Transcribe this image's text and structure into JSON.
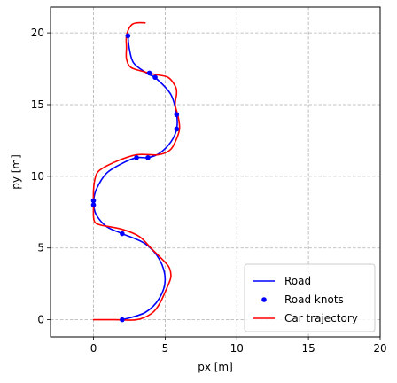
{
  "chart_data": {
    "type": "line",
    "xlabel": "px [m]",
    "ylabel": "py [m]",
    "xlim": [
      -3,
      20
    ],
    "ylim": [
      -1.2,
      21.8
    ],
    "x_ticks": [
      0,
      5,
      10,
      15,
      20
    ],
    "y_ticks": [
      0,
      5,
      10,
      15,
      20
    ],
    "x_tick_labels": [
      "0",
      "5",
      "10",
      "15",
      "20"
    ],
    "y_tick_labels": [
      "0",
      "5",
      "10",
      "15",
      "20"
    ],
    "grid": true,
    "legend_position": "lower right",
    "series": [
      {
        "name": "Road",
        "kind": "line",
        "color": "#0000ff",
        "points": [
          [
            2.0,
            0.0
          ],
          [
            3.6,
            0.5
          ],
          [
            4.6,
            1.5
          ],
          [
            5.0,
            2.8
          ],
          [
            4.6,
            4.2
          ],
          [
            3.6,
            5.3
          ],
          [
            2.0,
            6.0
          ],
          [
            0.9,
            6.5
          ],
          [
            0.2,
            7.3
          ],
          [
            0.0,
            8.0
          ],
          [
            0.0,
            8.3
          ],
          [
            0.2,
            9.1
          ],
          [
            0.9,
            10.2
          ],
          [
            2.0,
            10.9
          ],
          [
            3.0,
            11.3
          ],
          [
            3.8,
            11.3
          ],
          [
            4.6,
            11.6
          ],
          [
            5.4,
            12.4
          ],
          [
            5.8,
            13.3
          ],
          [
            5.8,
            14.3
          ],
          [
            5.4,
            15.7
          ],
          [
            4.4,
            16.8
          ],
          [
            3.7,
            17.2
          ],
          [
            2.8,
            17.9
          ],
          [
            2.5,
            18.9
          ],
          [
            2.4,
            19.8
          ]
        ]
      },
      {
        "name": "Road knots",
        "kind": "scatter",
        "color": "#0000ff",
        "points": [
          [
            2.0,
            0.0
          ],
          [
            2.0,
            6.0
          ],
          [
            0.0,
            8.0
          ],
          [
            0.0,
            8.3
          ],
          [
            3.0,
            11.3
          ],
          [
            3.8,
            11.3
          ],
          [
            5.8,
            13.3
          ],
          [
            5.8,
            14.3
          ],
          [
            3.9,
            17.2
          ],
          [
            4.3,
            16.9
          ],
          [
            2.4,
            19.8
          ]
        ]
      },
      {
        "name": "Car trajectory",
        "kind": "line",
        "color": "#ff0000",
        "points": [
          [
            0.0,
            0.0
          ],
          [
            1.5,
            0.0
          ],
          [
            3.0,
            0.0
          ],
          [
            4.0,
            0.4
          ],
          [
            4.6,
            1.1
          ],
          [
            5.2,
            2.4
          ],
          [
            5.4,
            3.0
          ],
          [
            5.3,
            3.6
          ],
          [
            5.0,
            4.0
          ],
          [
            4.0,
            5.0
          ],
          [
            3.2,
            5.8
          ],
          [
            2.0,
            6.3
          ],
          [
            0.5,
            6.6
          ],
          [
            0.1,
            6.8
          ],
          [
            0.0,
            7.2
          ],
          [
            0.0,
            8.0
          ],
          [
            0.0,
            9.0
          ],
          [
            0.1,
            9.8
          ],
          [
            0.4,
            10.4
          ],
          [
            1.5,
            11.0
          ],
          [
            3.0,
            11.5
          ],
          [
            4.5,
            11.5
          ],
          [
            5.3,
            11.8
          ],
          [
            5.7,
            12.4
          ],
          [
            6.0,
            13.3
          ],
          [
            5.9,
            14.2
          ],
          [
            5.7,
            15.0
          ],
          [
            5.8,
            15.8
          ],
          [
            5.7,
            16.3
          ],
          [
            5.2,
            16.9
          ],
          [
            4.3,
            17.1
          ],
          [
            3.5,
            17.3
          ],
          [
            2.6,
            17.6
          ],
          [
            2.3,
            18.2
          ],
          [
            2.3,
            19.0
          ],
          [
            2.3,
            19.8
          ],
          [
            2.6,
            20.5
          ],
          [
            3.0,
            20.7
          ],
          [
            3.6,
            20.7
          ]
        ]
      }
    ]
  }
}
